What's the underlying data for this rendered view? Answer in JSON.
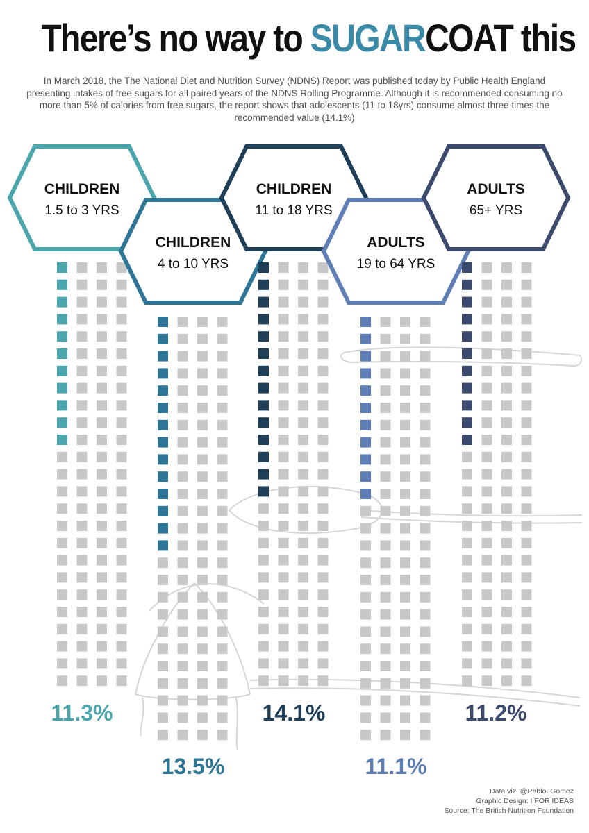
{
  "title": {
    "part1": "There’s no way to ",
    "highlight": "SUGAR",
    "part2": "COAT this"
  },
  "subtitle": "In March 2018, the The National Diet and Nutrition Survey (NDNS) Report was published today by Public Health England presenting intakes of free sugars for all paired years of the NDNS Rolling Programme. Although it is recommended consuming no more than 5% of calories from free sugars, the report shows that adolescents (11 to 18yrs) consume almost three times the recommended value (14.1%)",
  "chart_data": {
    "type": "waffle",
    "unit": "%",
    "total_squares": 100,
    "empty_color": "#c8c8c8",
    "groups": [
      {
        "category": "CHILDREN",
        "age": "1.5 to 3 YRS",
        "value": 11.3,
        "label": "11.3%",
        "color": "#4aa5ad"
      },
      {
        "category": "CHILDREN",
        "age": "4 to 10 YRS",
        "value": 13.5,
        "label": "13.5%",
        "color": "#2e7596"
      },
      {
        "category": "CHILDREN",
        "age": "11 to 18 YRS",
        "value": 14.1,
        "label": "14.1%",
        "color": "#1f3e57"
      },
      {
        "category": "ADULTS",
        "age": "19 to 64 YRS",
        "value": 11.1,
        "label": "11.1%",
        "color": "#5f7eb6"
      },
      {
        "category": "ADULTS",
        "age": "65+ YRS",
        "value": 11.2,
        "label": "11.2%",
        "color": "#3c4a6d"
      }
    ]
  },
  "footer": {
    "credit1": "Data viz: @PabloLGomez",
    "credit2": "Graphic Design: I FOR IDEAS",
    "source": "Source: The British Nutrition Foundation"
  }
}
